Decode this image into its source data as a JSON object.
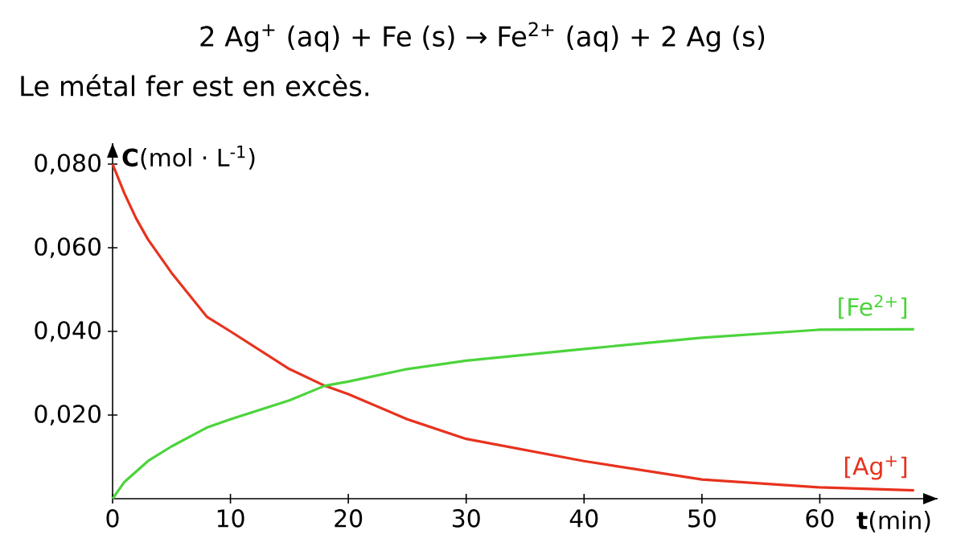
{
  "chart_data": {
    "type": "line",
    "title": "2 Ag$^{+}$ (aq) + Fe (s) → Fe$^{2+}$ (aq) + 2 Ag (s)",
    "subtitle": "Le métal fer est en excès.",
    "xlabel": "**t**(min)",
    "ylabel": "**C**(mol · L$^{-1}$)",
    "x": [
      0,
      1,
      2,
      3,
      5,
      8,
      10,
      15,
      18,
      20,
      25,
      30,
      40,
      50,
      60,
      68
    ],
    "series": [
      {
        "name": "[Ag$^{+}$]",
        "color": "#e8321e",
        "values": [
          0.08,
          0.073,
          0.067,
          0.062,
          0.054,
          0.0435,
          0.04,
          0.031,
          0.027,
          0.025,
          0.019,
          0.0143,
          0.009,
          0.0046,
          0.0027,
          0.002
        ]
      },
      {
        "name": "[Fe$^{2+}$]",
        "color": "#4cd43c",
        "values": [
          0,
          0.004,
          0.0065,
          0.009,
          0.0125,
          0.017,
          0.019,
          0.0235,
          0.027,
          0.028,
          0.031,
          0.033,
          0.0358,
          0.0385,
          0.0404,
          0.0405
        ]
      }
    ],
    "xlim": [
      0,
      70
    ],
    "ylim": [
      0,
      0.085
    ],
    "xticks": [
      0,
      10,
      20,
      30,
      40,
      50,
      60
    ],
    "yticks": [
      {
        "value": 0.02,
        "label": "0,020"
      },
      {
        "value": 0.04,
        "label": "0,040"
      },
      {
        "value": 0.06,
        "label": "0,060"
      },
      {
        "value": 0.08,
        "label": "0,080"
      }
    ],
    "marker": "none",
    "line_style": "solid"
  }
}
